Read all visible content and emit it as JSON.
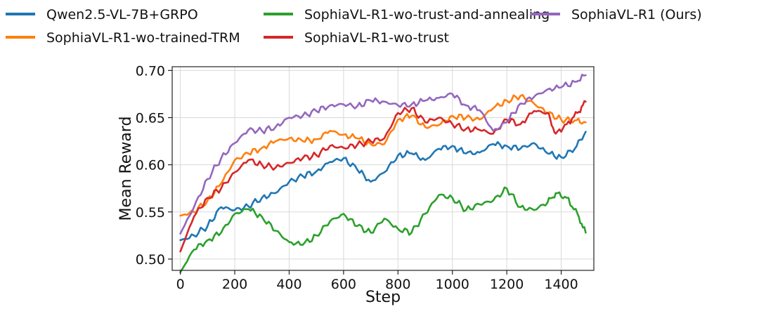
{
  "chart_data": {
    "type": "line",
    "xlabel": "Step",
    "ylabel": "Mean Reward",
    "xlim": [
      -30,
      1520
    ],
    "ylim": [
      0.488,
      0.704
    ],
    "xticks": [
      0,
      200,
      400,
      600,
      800,
      1000,
      1200,
      1400
    ],
    "yticks": [
      0.5,
      0.55,
      0.6,
      0.65,
      0.7
    ],
    "xtick_labels": [
      "0",
      "200",
      "400",
      "600",
      "800",
      "1000",
      "1200",
      "1400"
    ],
    "ytick_labels": [
      "0.50",
      "0.55",
      "0.60",
      "0.65",
      "0.70"
    ],
    "grid": true,
    "legend_placement": "top",
    "series": [
      {
        "name": "Qwen2.5-VL-7B+GRPO",
        "color": "#1f77b4",
        "x": [
          0,
          50,
          100,
          150,
          200,
          250,
          300,
          350,
          400,
          450,
          500,
          550,
          600,
          650,
          700,
          750,
          800,
          850,
          900,
          950,
          1000,
          1050,
          1100,
          1150,
          1200,
          1250,
          1300,
          1350,
          1400,
          1450,
          1490
        ],
        "y": [
          0.52,
          0.525,
          0.535,
          0.555,
          0.552,
          0.556,
          0.565,
          0.57,
          0.582,
          0.588,
          0.593,
          0.603,
          0.607,
          0.595,
          0.582,
          0.592,
          0.61,
          0.612,
          0.605,
          0.617,
          0.62,
          0.612,
          0.613,
          0.622,
          0.62,
          0.617,
          0.623,
          0.612,
          0.608,
          0.617,
          0.635
        ]
      },
      {
        "name": "SophiaVL-R1-wo-trained-TRM",
        "color": "#ff7f0e",
        "x": [
          0,
          50,
          100,
          150,
          200,
          250,
          300,
          350,
          400,
          450,
          500,
          550,
          600,
          650,
          700,
          750,
          800,
          850,
          900,
          950,
          1000,
          1050,
          1100,
          1150,
          1200,
          1250,
          1300,
          1350,
          1400,
          1450,
          1490
        ],
        "y": [
          0.546,
          0.55,
          0.562,
          0.58,
          0.605,
          0.612,
          0.618,
          0.625,
          0.628,
          0.625,
          0.627,
          0.636,
          0.632,
          0.628,
          0.622,
          0.622,
          0.648,
          0.652,
          0.64,
          0.642,
          0.652,
          0.65,
          0.648,
          0.66,
          0.668,
          0.673,
          0.665,
          0.655,
          0.648,
          0.647,
          0.645
        ]
      },
      {
        "name": "SophiaVL-R1-wo-trust-and-annealing",
        "color": "#2ca02c",
        "x": [
          0,
          50,
          100,
          150,
          200,
          250,
          300,
          350,
          400,
          450,
          500,
          550,
          600,
          650,
          700,
          750,
          800,
          850,
          900,
          950,
          1000,
          1050,
          1100,
          1150,
          1200,
          1250,
          1300,
          1350,
          1380,
          1420,
          1460,
          1490
        ],
        "y": [
          0.486,
          0.51,
          0.52,
          0.528,
          0.548,
          0.553,
          0.545,
          0.53,
          0.518,
          0.515,
          0.525,
          0.54,
          0.548,
          0.535,
          0.528,
          0.543,
          0.532,
          0.528,
          0.548,
          0.568,
          0.565,
          0.552,
          0.558,
          0.562,
          0.575,
          0.555,
          0.552,
          0.56,
          0.57,
          0.565,
          0.548,
          0.528
        ]
      },
      {
        "name": "SophiaVL-R1-wo-trust",
        "color": "#d62728",
        "x": [
          0,
          50,
          100,
          150,
          200,
          250,
          300,
          350,
          400,
          450,
          500,
          550,
          600,
          650,
          700,
          750,
          800,
          850,
          900,
          950,
          1000,
          1050,
          1100,
          1150,
          1200,
          1250,
          1300,
          1350,
          1380,
          1420,
          1460,
          1490
        ],
        "y": [
          0.508,
          0.545,
          0.565,
          0.575,
          0.592,
          0.605,
          0.6,
          0.597,
          0.602,
          0.607,
          0.61,
          0.62,
          0.618,
          0.621,
          0.625,
          0.628,
          0.655,
          0.66,
          0.645,
          0.65,
          0.643,
          0.638,
          0.637,
          0.633,
          0.648,
          0.643,
          0.657,
          0.655,
          0.633,
          0.643,
          0.655,
          0.667
        ]
      },
      {
        "name": "SophiaVL-R1 (Ours)",
        "color": "#9467bd",
        "x": [
          0,
          50,
          100,
          150,
          200,
          250,
          300,
          350,
          400,
          450,
          500,
          550,
          600,
          650,
          700,
          750,
          800,
          850,
          900,
          950,
          1000,
          1050,
          1100,
          1150,
          1200,
          1250,
          1300,
          1350,
          1400,
          1450,
          1490
        ],
        "y": [
          0.527,
          0.555,
          0.585,
          0.607,
          0.623,
          0.637,
          0.636,
          0.64,
          0.65,
          0.652,
          0.657,
          0.663,
          0.664,
          0.662,
          0.668,
          0.667,
          0.663,
          0.664,
          0.668,
          0.671,
          0.675,
          0.663,
          0.658,
          0.636,
          0.645,
          0.665,
          0.672,
          0.68,
          0.682,
          0.688,
          0.695
        ]
      }
    ]
  }
}
